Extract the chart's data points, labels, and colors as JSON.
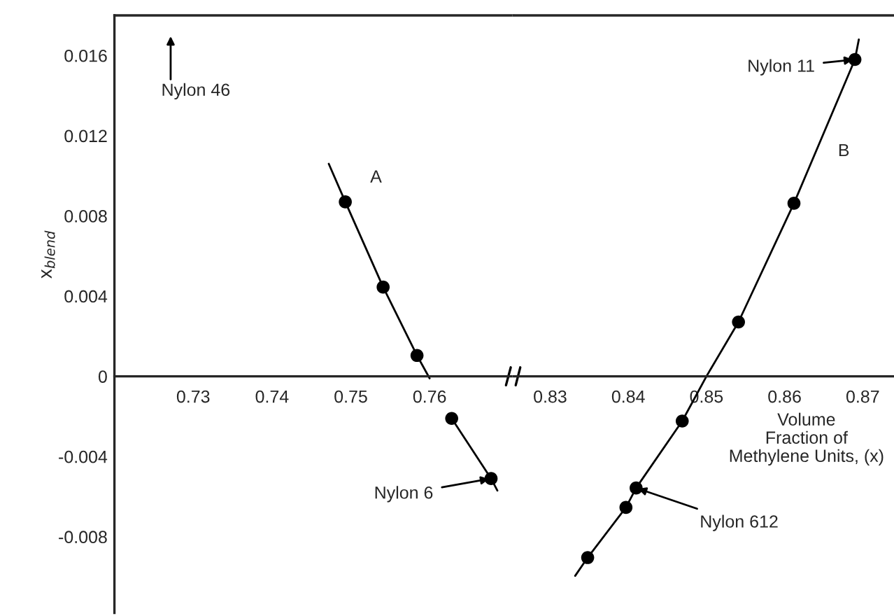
{
  "chart_data": [
    {
      "type": "scatter",
      "ylabel": "x$_{blend}$",
      "xlim": [
        0.72,
        0.7706
      ],
      "ylim": [
        -0.0118,
        0.018
      ],
      "xticks": [
        0.73,
        0.74,
        0.75,
        0.76
      ],
      "yticks": [
        -0.008,
        -0.004,
        0,
        0.004,
        0.008,
        0.012,
        0.016
      ],
      "series": [
        {
          "color": "#000000",
          "marker": "circle",
          "x": [
            0.7493,
            0.7541,
            0.7584,
            0.7628,
            0.7678
          ],
          "values": [
            0.0087,
            0.00445,
            0.00104,
            -0.0021,
            -0.0051
          ]
        },
        {
          "type": "line",
          "color": "#000000",
          "x": [
            0.7472,
            0.7493,
            0.7541,
            0.7584,
            0.76,
            null,
            0.7628,
            0.7678,
            0.7686
          ],
          "values": [
            0.0106,
            0.0087,
            0.00445,
            0.00104,
            -0.0001,
            null,
            -0.0021,
            -0.0051,
            -0.0057
          ]
        }
      ],
      "annotations": [
        "Nylon 46",
        {
          "text": "Nylon 6",
          "x": 0.7678,
          "y": -0.0051
        },
        "A"
      ]
    },
    {
      "type": "scatter",
      "xlabel": "Volume\nFraction of\nMethylene Units, (x)",
      "xlim": [
        0.8253,
        0.874
      ],
      "ylim": [
        -0.0118,
        0.018
      ],
      "xticks": [
        0.83,
        0.84,
        0.85,
        0.86,
        0.87
      ],
      "yticks": [
        -0.008,
        -0.004,
        0,
        0.004,
        0.008,
        0.012,
        0.016
      ],
      "tick_labels": "x",
      "series": [
        {
          "color": "#000000",
          "marker": "circle",
          "x": [
            0.8348,
            0.8397,
            0.841,
            0.8469,
            0.8541,
            0.8612,
            0.869
          ],
          "values": [
            -0.00904,
            -0.00654,
            -0.00557,
            -0.00223,
            0.00271,
            0.00863,
            0.0158
          ]
        },
        {
          "type": "line",
          "color": "#000000",
          "x": [
            0.8332,
            0.8348,
            0.8397,
            0.841,
            0.8469,
            0.85,
            0.8541,
            0.8612,
            0.869,
            0.8695
          ],
          "values": [
            -0.00995,
            -0.00904,
            -0.00654,
            -0.00557,
            -0.00223,
            0,
            0.00271,
            0.00863,
            0.0158,
            0.0168
          ]
        }
      ],
      "annotations": [
        {
          "text": "Nylon 11",
          "x": 0.869,
          "y": 0.0158
        },
        {
          "text": "Nylon 612",
          "x": 0.841,
          "y": -0.00557
        },
        "B"
      ]
    }
  ]
}
